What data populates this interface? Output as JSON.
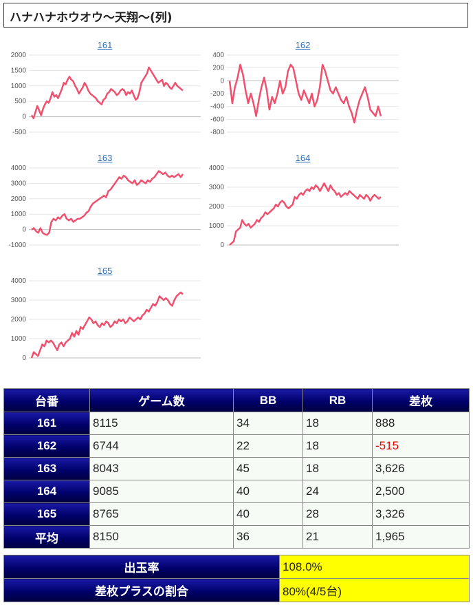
{
  "title": "ハナハナホウオウ〜天翔〜(列)",
  "colors": {
    "line": "#f0506e",
    "header_bg": "#00006a",
    "yellow": "#ffff00",
    "negative": "#e00000"
  },
  "chart_data": [
    {
      "type": "line",
      "title": "161",
      "ylim": [
        -500,
        2000
      ],
      "yticks": [
        2000,
        1500,
        1000,
        500,
        0,
        -500
      ],
      "values": [
        50,
        -50,
        150,
        350,
        200,
        50,
        250,
        400,
        500,
        450,
        600,
        800,
        650,
        700,
        600,
        750,
        900,
        1100,
        1050,
        1200,
        1300,
        1200,
        1150,
        1000,
        900,
        750,
        850,
        950,
        1100,
        1000,
        850,
        750,
        700,
        650,
        600,
        500,
        450,
        400,
        550,
        600,
        750,
        800,
        900,
        850,
        800,
        700,
        750,
        850,
        900,
        850,
        700,
        800,
        750,
        850,
        700,
        550,
        600,
        800,
        1100,
        1200,
        1300,
        1400,
        1600,
        1500,
        1400,
        1300,
        1200,
        1100,
        1150,
        1200,
        1000,
        1100,
        1050,
        950,
        900,
        1000,
        1100,
        1000,
        950,
        900,
        850
      ],
      "series_name": "161"
    },
    {
      "type": "line",
      "title": "162",
      "ylim": [
        -800,
        400
      ],
      "yticks": [
        400,
        200,
        0,
        -200,
        -400,
        -600,
        -800
      ],
      "values": [
        0,
        -350,
        -100,
        50,
        250,
        100,
        -150,
        -350,
        -200,
        -350,
        -550,
        -300,
        -100,
        50,
        -150,
        -450,
        -250,
        -350,
        -200,
        0,
        -200,
        -100,
        150,
        250,
        200,
        0,
        -200,
        -300,
        -150,
        -250,
        -350,
        -200,
        -400,
        -300,
        -100,
        250,
        150,
        0,
        -150,
        -200,
        -100,
        -200,
        -300,
        -350,
        -250,
        -400,
        -500,
        -650,
        -450,
        -300,
        -200,
        -100,
        -250,
        -450,
        -500,
        -550,
        -400,
        -550
      ],
      "series_name": "162"
    },
    {
      "type": "line",
      "title": "163",
      "ylim": [
        -1000,
        4000
      ],
      "yticks": [
        4000,
        3000,
        2000,
        1000,
        0,
        -1000
      ],
      "values": [
        0,
        100,
        -100,
        -200,
        100,
        -200,
        -300,
        -350,
        -200,
        500,
        700,
        600,
        800,
        700,
        900,
        1000,
        700,
        600,
        700,
        500,
        600,
        700,
        700,
        800,
        900,
        1100,
        1200,
        1500,
        1700,
        1800,
        1900,
        2000,
        2100,
        2200,
        2100,
        2500,
        2600,
        2800,
        3000,
        3200,
        3400,
        3300,
        3500,
        3400,
        3200,
        3100,
        3000,
        3200,
        2900,
        3000,
        3200,
        3100,
        3000,
        3200,
        3100,
        3300,
        3400,
        3600,
        3800,
        3700,
        3600,
        3700,
        3500,
        3400,
        3500,
        3400,
        3500,
        3600,
        3400,
        3600
      ],
      "series_name": "163"
    },
    {
      "type": "line",
      "title": "164",
      "ylim": [
        0,
        4000
      ],
      "yticks": [
        4000,
        3000,
        2000,
        1000,
        0
      ],
      "values": [
        0,
        100,
        200,
        700,
        800,
        900,
        1300,
        1100,
        1000,
        1100,
        900,
        1000,
        1100,
        1300,
        1200,
        1400,
        1500,
        1700,
        1600,
        1700,
        1800,
        1900,
        2100,
        2000,
        2200,
        2300,
        2200,
        2000,
        1900,
        2000,
        2100,
        2500,
        2400,
        2600,
        2700,
        2600,
        2800,
        2900,
        2800,
        3000,
        2900,
        3100,
        3000,
        2800,
        3000,
        3200,
        3000,
        2800,
        3100,
        2900,
        2800,
        2600,
        2700,
        2500,
        2600,
        2700,
        2600,
        2800,
        2700,
        2600,
        2500,
        2400,
        2600,
        2500,
        2400,
        2600,
        2500,
        2300,
        2500,
        2600,
        2500,
        2400,
        2500
      ],
      "series_name": "164"
    },
    {
      "type": "line",
      "title": "165",
      "ylim": [
        0,
        4000
      ],
      "yticks": [
        4000,
        3000,
        2000,
        1000,
        0
      ],
      "values": [
        0,
        300,
        200,
        100,
        400,
        700,
        600,
        900,
        800,
        900,
        800,
        600,
        400,
        700,
        800,
        600,
        800,
        900,
        1000,
        1300,
        1100,
        1400,
        1200,
        1600,
        1500,
        1700,
        1900,
        2100,
        2000,
        1800,
        1900,
        1700,
        1600,
        1800,
        1700,
        1900,
        1800,
        1600,
        1700,
        1900,
        1800,
        2000,
        1900,
        2000,
        1800,
        1900,
        2100,
        2000,
        1900,
        2000,
        2100,
        2000,
        2200,
        2300,
        2500,
        2400,
        2600,
        2800,
        2700,
        2900,
        3200,
        3100,
        3000,
        3100,
        3000,
        2800,
        2700,
        3000,
        3200,
        3300,
        3400,
        3300
      ],
      "series_name": "165"
    }
  ],
  "table": {
    "headers": [
      "台番",
      "ゲーム数",
      "BB",
      "RB",
      "差枚"
    ],
    "rows": [
      {
        "no": "161",
        "games": "8115",
        "bb": "34",
        "rb": "18",
        "diff": "888",
        "neg": false
      },
      {
        "no": "162",
        "games": "6744",
        "bb": "22",
        "rb": "18",
        "diff": "-515",
        "neg": true
      },
      {
        "no": "163",
        "games": "8043",
        "bb": "45",
        "rb": "18",
        "diff": "3,626",
        "neg": false
      },
      {
        "no": "164",
        "games": "9085",
        "bb": "40",
        "rb": "24",
        "diff": "2,500",
        "neg": false
      },
      {
        "no": "165",
        "games": "8765",
        "bb": "40",
        "rb": "28",
        "diff": "3,326",
        "neg": false
      },
      {
        "no": "平均",
        "games": "8150",
        "bb": "36",
        "rb": "21",
        "diff": "1,965",
        "neg": false
      }
    ]
  },
  "summary": {
    "payout_label": "出玉率",
    "payout_value": "108.0%",
    "plus_label": "差枚プラスの割合",
    "plus_value": "80%(4/5台)"
  }
}
